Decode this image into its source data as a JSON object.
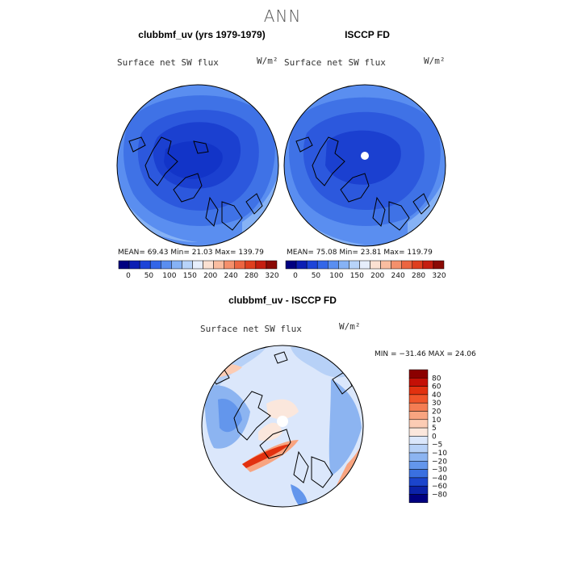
{
  "main_title": "ANN",
  "panels": [
    {
      "title": "clubbmf_uv (yrs 1979-1979)",
      "variable": "Surface net SW flux",
      "units": "W/m²",
      "stats": "MEAN=  69.43  Min=  21.03  Max= 139.79"
    },
    {
      "title": "ISCCP FD",
      "variable": "Surface net SW flux",
      "units": "W/m²",
      "stats": "MEAN=  75.08  Min=  23.81  Max= 119.79"
    },
    {
      "title": "clubbmf_uv - ISCCP FD",
      "variable": "Surface net SW flux",
      "units": "W/m²",
      "stats": "MIN = −31.46 MAX =  24.06"
    }
  ],
  "chart_data": [
    {
      "type": "heatmap",
      "projection": "north polar stereographic",
      "title": "clubbmf_uv (yrs 1979-1979)",
      "variable": "Surface net SW flux",
      "units": "W/m²",
      "mean": 69.43,
      "min": 21.03,
      "max": 139.79
    },
    {
      "type": "heatmap",
      "projection": "north polar stereographic",
      "title": "ISCCP FD",
      "variable": "Surface net SW flux",
      "units": "W/m²",
      "mean": 75.08,
      "min": 23.81,
      "max": 119.79
    },
    {
      "type": "heatmap",
      "projection": "north polar stereographic",
      "title": "clubbmf_uv - ISCCP FD",
      "variable": "Surface net SW flux",
      "units": "W/m²",
      "min": -31.46,
      "max": 24.06
    }
  ],
  "abs_colorbar": {
    "colors": [
      "#000080",
      "#0c1fb4",
      "#1d44d8",
      "#3366e8",
      "#5a8ef0",
      "#86b2f5",
      "#b7d3f9",
      "#e6eefc",
      "#fbe1d2",
      "#f9bda0",
      "#f4906c",
      "#ec6541",
      "#df3f1f",
      "#c51e10",
      "#8b0a05"
    ],
    "labels": [
      "0",
      "50",
      "100",
      "150",
      "200",
      "240",
      "280",
      "320"
    ]
  },
  "diff_colorbar": {
    "colors": [
      "#8b0000",
      "#c41006",
      "#e2310f",
      "#f0552a",
      "#f47d53",
      "#f8a480",
      "#fcccb4",
      "#fbe7dc",
      "#dbe7fb",
      "#b7d1f7",
      "#8cb4f1",
      "#6396ec",
      "#3a70e0",
      "#1b45cc",
      "#0b22a8",
      "#000080"
    ],
    "labels": [
      "80",
      "60",
      "40",
      "30",
      "20",
      "10",
      "5",
      "0",
      "−5",
      "−10",
      "−20",
      "−30",
      "−40",
      "−60",
      "−80"
    ]
  }
}
